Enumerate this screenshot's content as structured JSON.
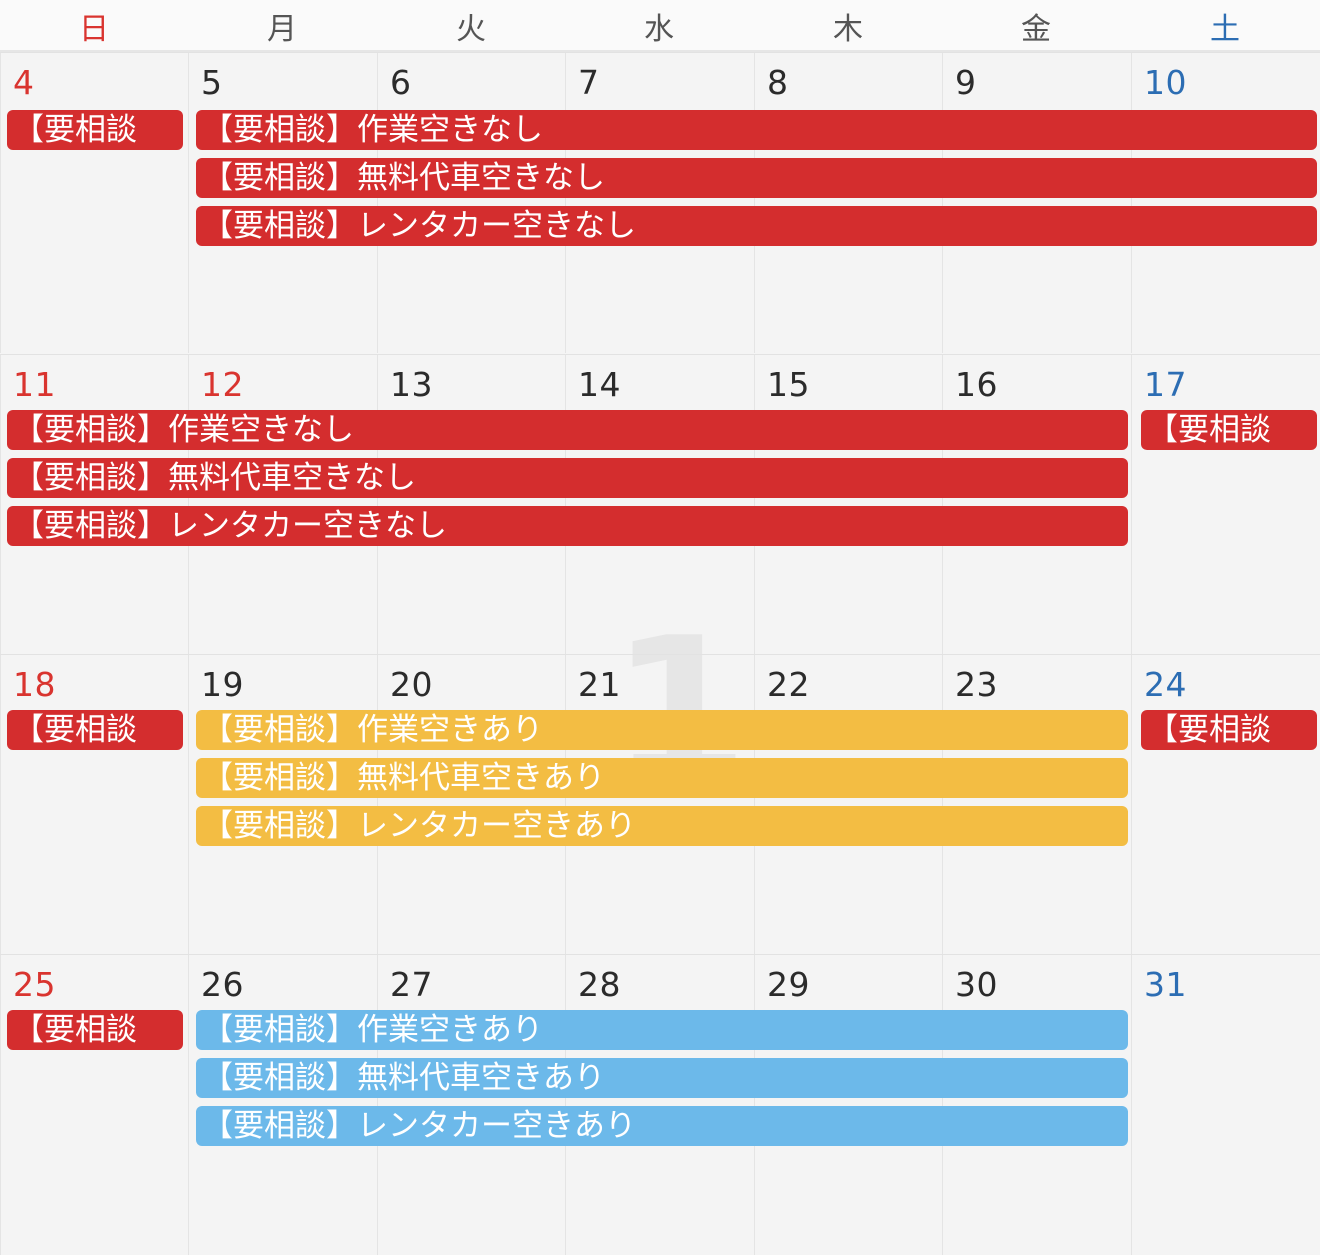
{
  "weekdays": [
    "日",
    "月",
    "火",
    "水",
    "木",
    "金",
    "土"
  ],
  "month_watermark": "1",
  "event_title": "【要相談】",
  "events": {
    "work_full": "【要相談】作業空きなし",
    "car_full": "【要相談】無料代車空きなし",
    "rental_full": "【要相談】レンタカー空きなし",
    "work_open": "【要相談】作業空きあり",
    "car_open": "【要相談】無料代車空きあり",
    "rental_open": "【要相談】レンタカー空きあり",
    "short": "【要相談"
  },
  "weeks": [
    {
      "days": [
        "4",
        "5",
        "6",
        "7",
        "8",
        "9",
        "10"
      ]
    },
    {
      "days": [
        "11",
        "12",
        "13",
        "14",
        "15",
        "16",
        "17"
      ]
    },
    {
      "days": [
        "18",
        "19",
        "20",
        "21",
        "22",
        "23",
        "24"
      ]
    },
    {
      "days": [
        "25",
        "26",
        "27",
        "28",
        "29",
        "30",
        "31"
      ]
    }
  ],
  "colors": {
    "red_event": "#d42d2e",
    "yellow_event": "#f3bd43",
    "blue_event": "#6cb9ea",
    "sunday": "#d9342f",
    "saturday": "#2c6db3"
  }
}
